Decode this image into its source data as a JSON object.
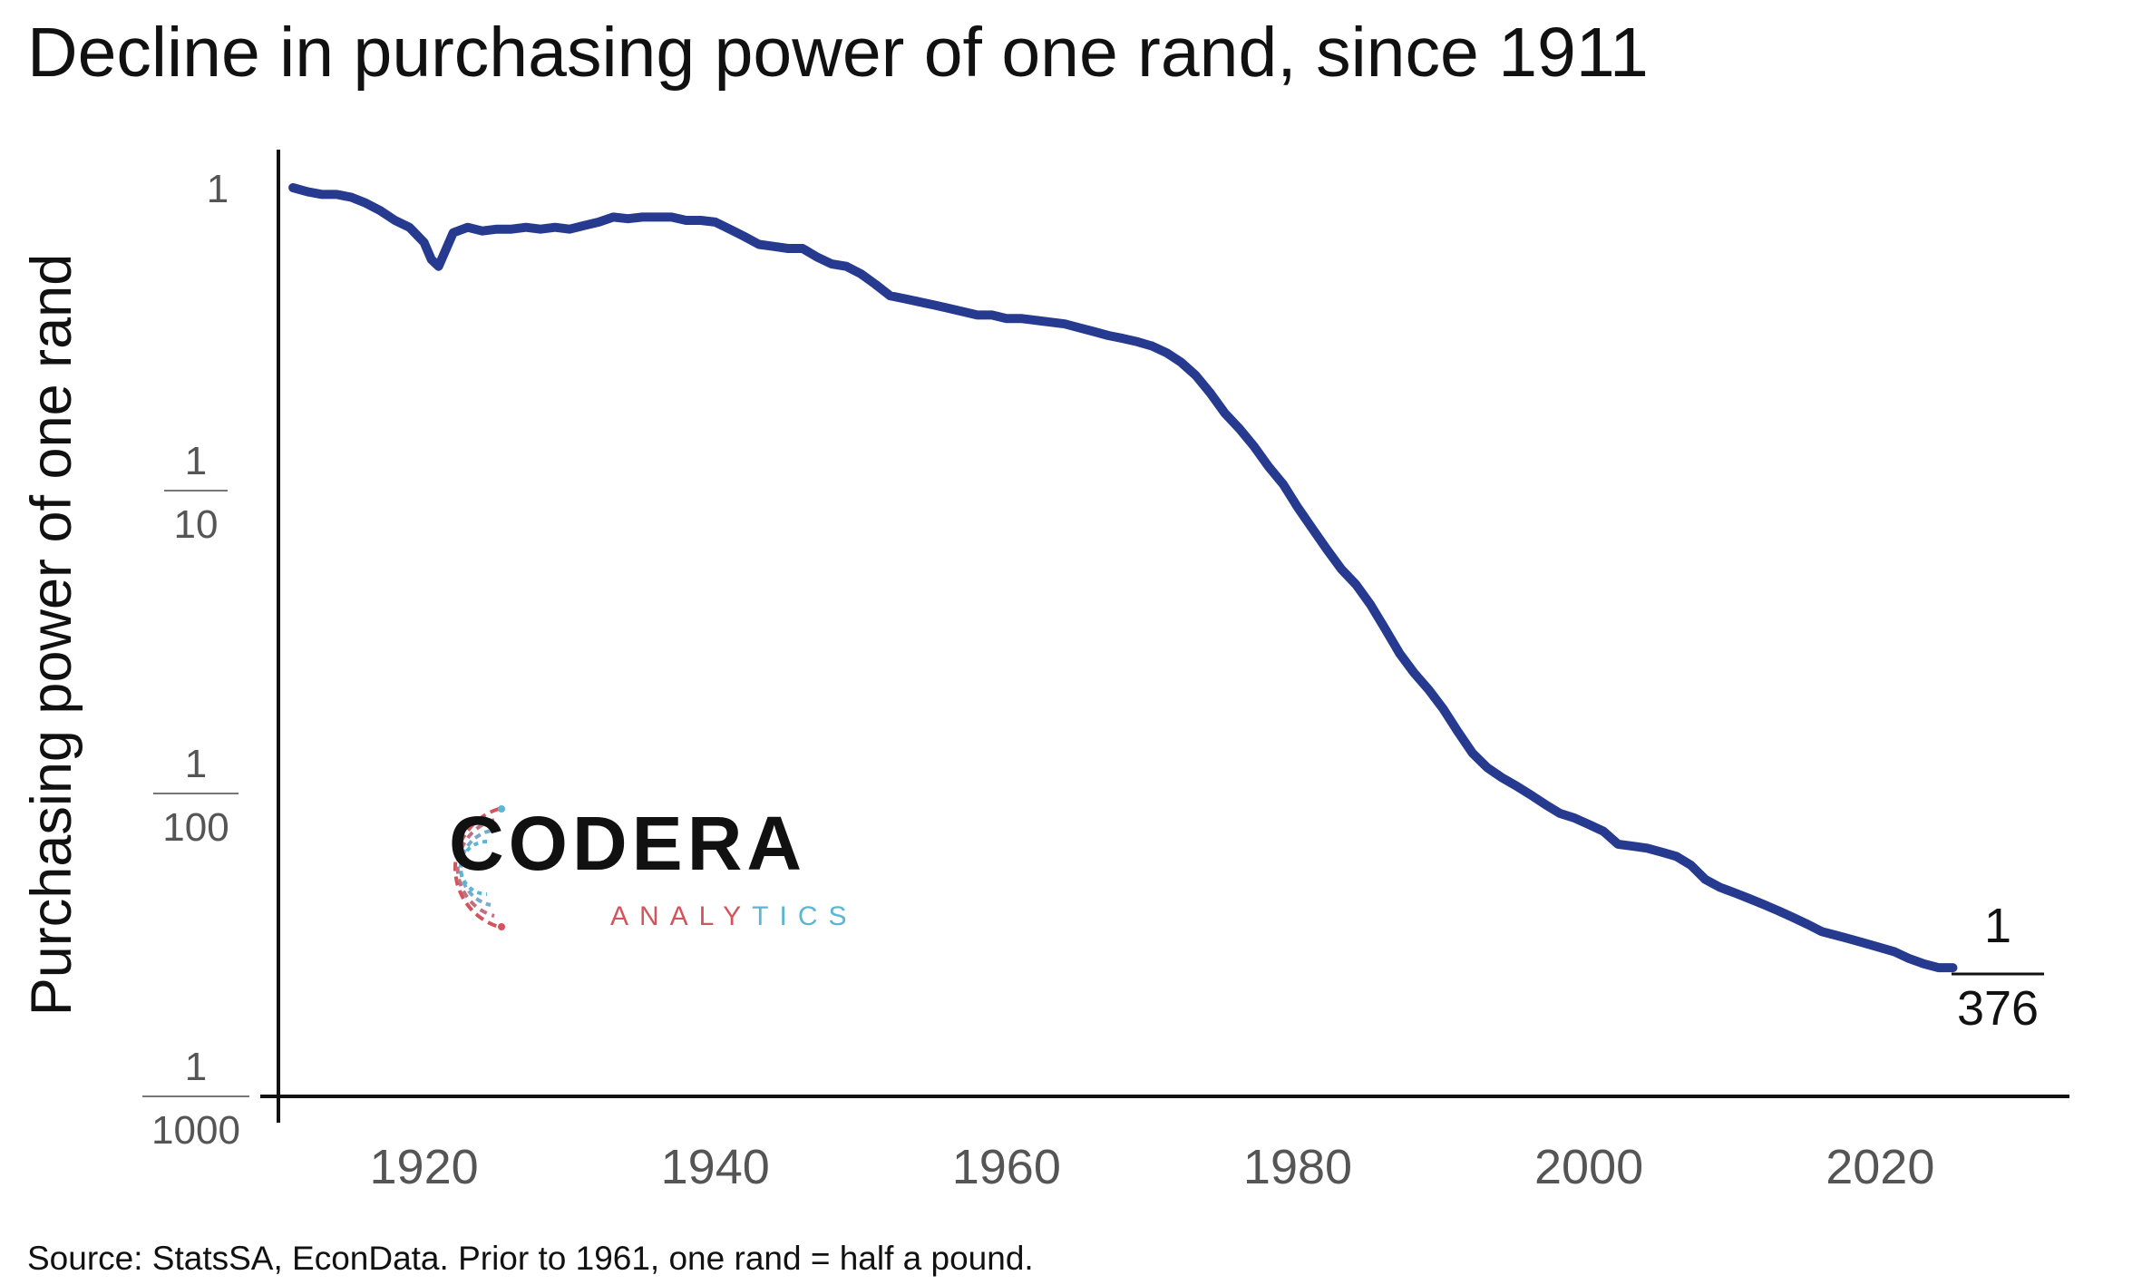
{
  "title": "Decline in purchasing power of one rand, since 1911",
  "source": "Source: StatsSA, EconData.  Prior to 1961, one rand = half a pound.",
  "logo": {
    "name": "CODERA",
    "sub_a": "ANALY",
    "sub_b": "TICS",
    "colors": [
      "#d3545c",
      "#5bb5d3",
      "#111111"
    ]
  },
  "chart_data": {
    "type": "line",
    "title": "Decline in purchasing power of one rand, since 1911",
    "ylabel": "Purchasing power of one rand",
    "xlabel": "",
    "y_scale": "log",
    "xlim": [
      1910,
      2033
    ],
    "ylim": [
      0.001,
      1
    ],
    "x_ticks": [
      1920,
      1940,
      1960,
      1980,
      2000,
      2020
    ],
    "y_ticks": [
      {
        "value": 1,
        "numerator": "1",
        "denominator": ""
      },
      {
        "value": 0.1,
        "numerator": "1",
        "denominator": "10"
      },
      {
        "value": 0.01,
        "numerator": "1",
        "denominator": "100"
      },
      {
        "value": 0.001,
        "numerator": "1",
        "denominator": "1000"
      }
    ],
    "end_annotation": {
      "numerator": "1",
      "denominator": "376"
    },
    "line_color": "#263a8f",
    "series": [
      {
        "x": [
          1911,
          1912,
          1913,
          1914,
          1915,
          1916,
          1917,
          1918,
          1919,
          1920,
          1920.5,
          1921,
          1922,
          1923,
          1924,
          1925,
          1926,
          1927,
          1928,
          1929,
          1930,
          1931,
          1932,
          1933,
          1934,
          1935,
          1936,
          1937,
          1938,
          1939,
          1940,
          1941,
          1942,
          1943,
          1944,
          1945,
          1946,
          1947,
          1948,
          1949,
          1950,
          1951,
          1952,
          1953,
          1954,
          1955,
          1956,
          1957,
          1958,
          1959,
          1960,
          1961,
          1962,
          1963,
          1964,
          1965,
          1966,
          1967,
          1968,
          1969,
          1970,
          1971,
          1972,
          1973,
          1974,
          1975,
          1976,
          1977,
          1978,
          1979,
          1980,
          1981,
          1982,
          1983,
          1984,
          1985,
          1986,
          1987,
          1988,
          1989,
          1990,
          1991,
          1992,
          1993,
          1994,
          1995,
          1996,
          1997,
          1998,
          1999,
          2000,
          2001,
          2002,
          2003,
          2004,
          2005,
          2006,
          2007,
          2008,
          2009,
          2010,
          2011,
          2012,
          2013,
          2014,
          2015,
          2016,
          2017,
          2018,
          2019,
          2020,
          2021,
          2022,
          2023,
          2024,
          2025
        ],
        "y": [
          1.0,
          0.97,
          0.95,
          0.95,
          0.93,
          0.89,
          0.84,
          0.78,
          0.74,
          0.66,
          0.58,
          0.55,
          0.71,
          0.74,
          0.72,
          0.73,
          0.73,
          0.74,
          0.73,
          0.74,
          0.73,
          0.75,
          0.77,
          0.8,
          0.79,
          0.8,
          0.8,
          0.8,
          0.78,
          0.78,
          0.77,
          0.73,
          0.69,
          0.65,
          0.64,
          0.63,
          0.63,
          0.59,
          0.56,
          0.55,
          0.52,
          0.48,
          0.44,
          0.43,
          0.42,
          0.41,
          0.4,
          0.39,
          0.38,
          0.38,
          0.37,
          0.37,
          0.365,
          0.36,
          0.355,
          0.345,
          0.335,
          0.325,
          0.318,
          0.31,
          0.3,
          0.285,
          0.265,
          0.24,
          0.21,
          0.18,
          0.16,
          0.14,
          0.12,
          0.105,
          0.088,
          0.075,
          0.064,
          0.055,
          0.049,
          0.042,
          0.035,
          0.029,
          0.025,
          0.022,
          0.019,
          0.016,
          0.0136,
          0.0122,
          0.0113,
          0.0106,
          0.0099,
          0.0092,
          0.0086,
          0.0083,
          0.0079,
          0.0075,
          0.0068,
          0.0067,
          0.0066,
          0.0064,
          0.0062,
          0.0058,
          0.0052,
          0.0049,
          0.0047,
          0.0045,
          0.0043,
          0.0041,
          0.0039,
          0.0037,
          0.0035,
          0.0034,
          0.0033,
          0.0032,
          0.0031,
          0.003,
          0.00285,
          0.00274,
          0.00266,
          0.00266
        ]
      }
    ]
  }
}
